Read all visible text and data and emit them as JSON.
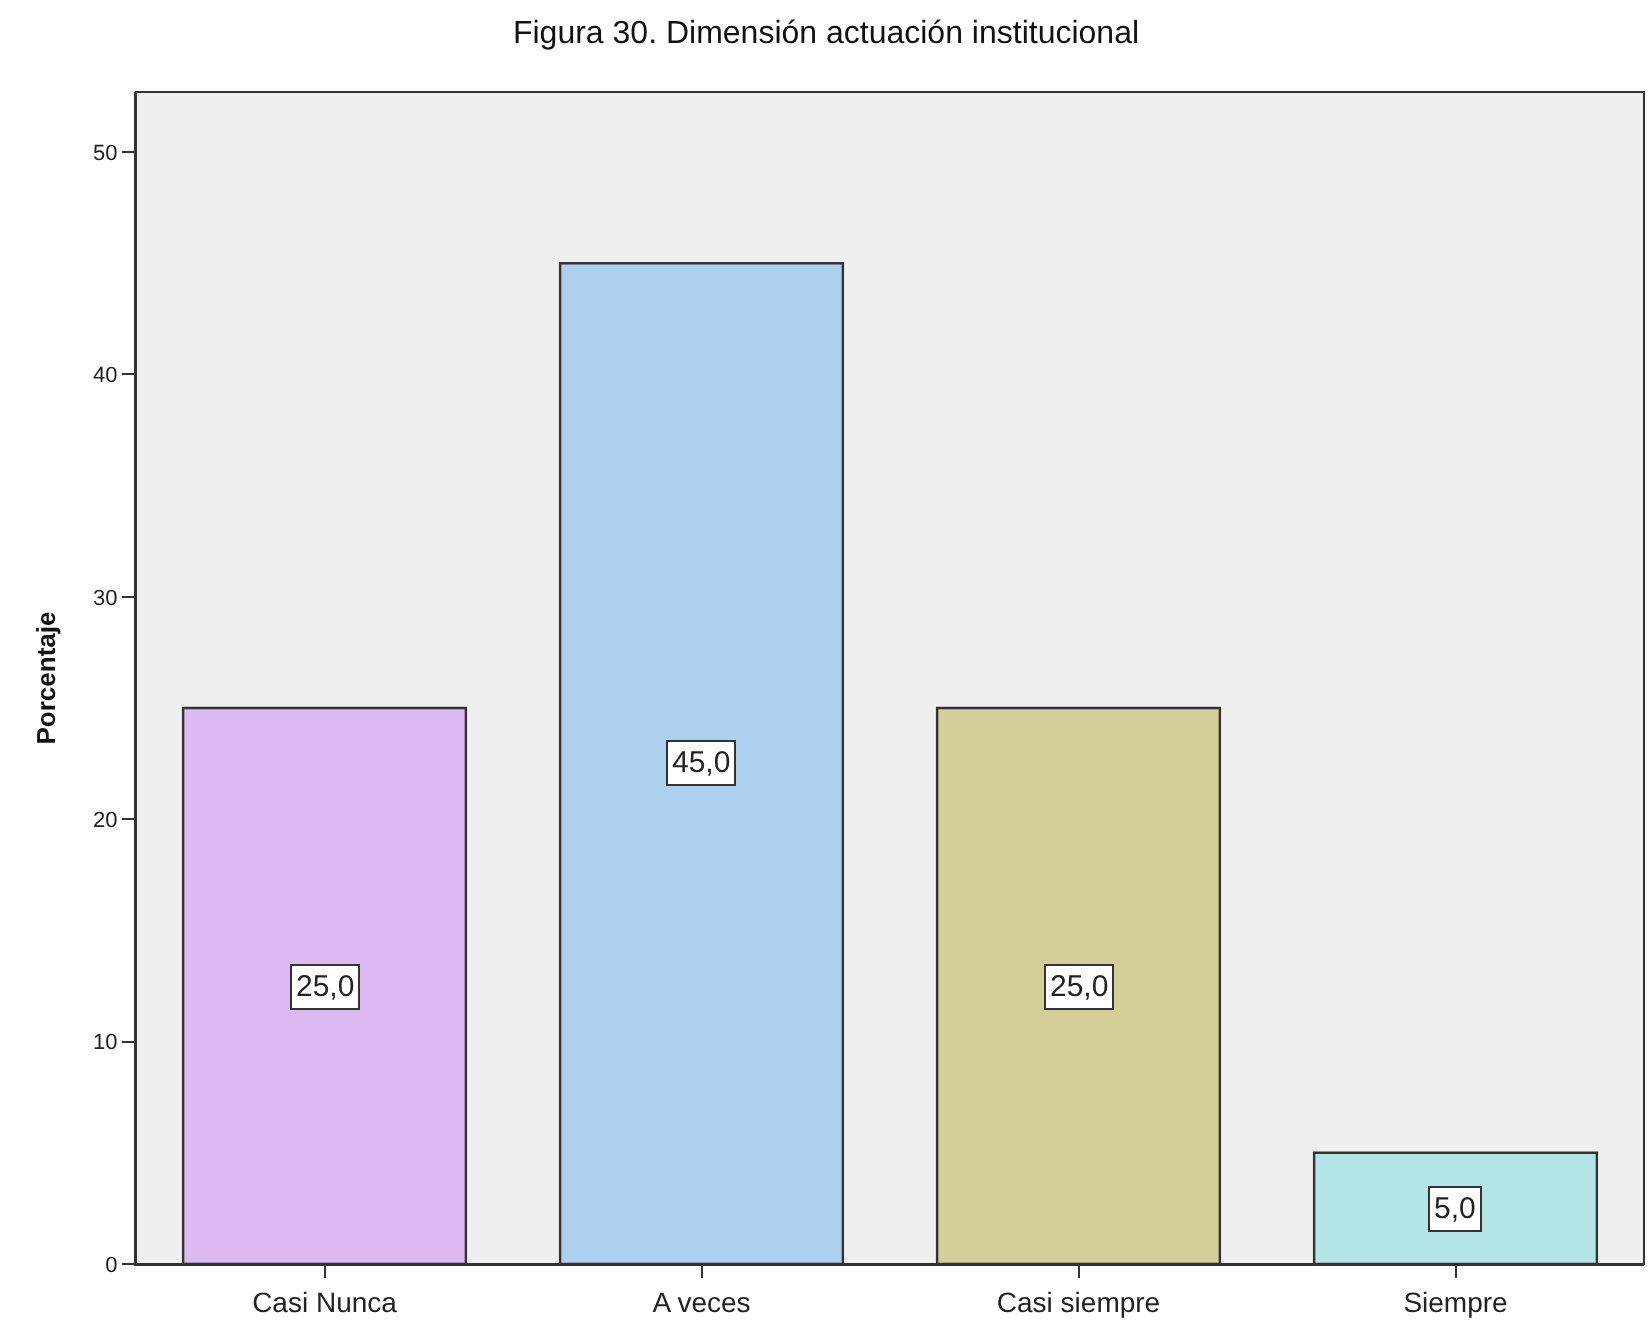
{
  "chart_data": {
    "type": "bar",
    "title": "Figura 30. Dimensión actuación institucional",
    "ylabel": "Porcentaje",
    "categories": [
      "Casi Nunca",
      "A veces",
      "Casi siempre",
      "Siempre"
    ],
    "values": [
      25.0,
      45.0,
      25.0,
      5.0
    ],
    "colors": [
      "#ddb9f2",
      "#acd0ee",
      "#d4ce98",
      "#b3e5e6"
    ],
    "value_labels": [
      "25,0",
      "45,0",
      "25,0",
      "5,0"
    ],
    "ylim": [
      0,
      52.7
    ],
    "yticks": [
      0,
      10,
      20,
      30,
      40,
      50
    ]
  }
}
